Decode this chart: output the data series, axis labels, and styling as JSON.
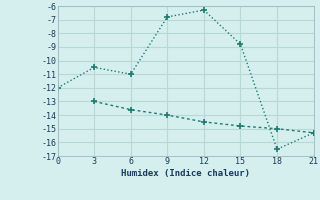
{
  "xlabel": "Humidex (Indice chaleur)",
  "bg_color": "#d4efee",
  "grid_color": "#b8d8d5",
  "line_color": "#1e7a70",
  "line1_x": [
    0,
    3,
    6,
    9,
    12,
    15,
    18,
    21
  ],
  "line1_y": [
    -12,
    -10.5,
    -11,
    -6.8,
    -6.3,
    -8.8,
    -16.5,
    -15.3
  ],
  "line2_x": [
    3,
    6,
    9,
    12,
    15,
    18,
    21
  ],
  "line2_y": [
    -13,
    -13.6,
    -14.0,
    -14.5,
    -14.8,
    -15.0,
    -15.3
  ],
  "xlim": [
    0,
    21
  ],
  "ylim": [
    -17,
    -6
  ],
  "xticks": [
    0,
    3,
    6,
    9,
    12,
    15,
    18,
    21
  ],
  "yticks": [
    -6,
    -7,
    -8,
    -9,
    -10,
    -11,
    -12,
    -13,
    -14,
    -15,
    -16,
    -17
  ]
}
